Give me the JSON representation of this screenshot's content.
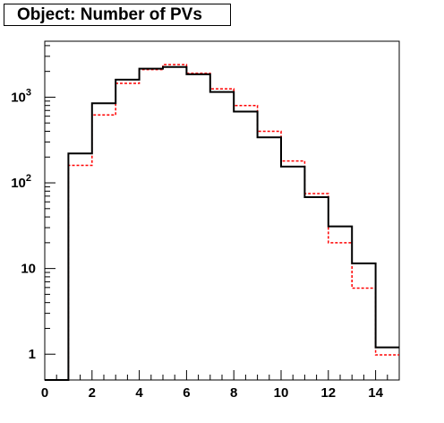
{
  "chart_data": {
    "type": "step",
    "title": "Object: Number of PVs",
    "xlabel": "",
    "ylabel": "",
    "xlim": [
      0,
      15
    ],
    "ylim": [
      0.5,
      4500
    ],
    "yscale": "log",
    "grid": false,
    "x_ticks": [
      "0",
      "2",
      "4",
      "6",
      "8",
      "10",
      "12",
      "14"
    ],
    "y_ticks": [
      {
        "value": 1,
        "base": "1",
        "exp": ""
      },
      {
        "value": 10,
        "base": "10",
        "exp": ""
      },
      {
        "value": 100,
        "base": "10",
        "exp": "2"
      },
      {
        "value": 1000,
        "base": "10",
        "exp": "3"
      }
    ],
    "bin_edges": [
      0,
      1,
      2,
      3,
      4,
      5,
      6,
      7,
      8,
      9,
      10,
      11,
      12,
      13,
      14,
      15
    ],
    "series": [
      {
        "color": "#000000",
        "style": "solid",
        "values": [
          0.5,
          220,
          850,
          1600,
          2150,
          2250,
          1850,
          1150,
          680,
          340,
          155,
          68,
          31,
          11.5,
          1.2
        ]
      },
      {
        "color": "#ff0000",
        "style": "dashed",
        "values": [
          0.5,
          160,
          620,
          1450,
          2100,
          2400,
          1900,
          1250,
          800,
          400,
          180,
          75,
          20,
          5.9,
          0.98
        ]
      }
    ]
  }
}
